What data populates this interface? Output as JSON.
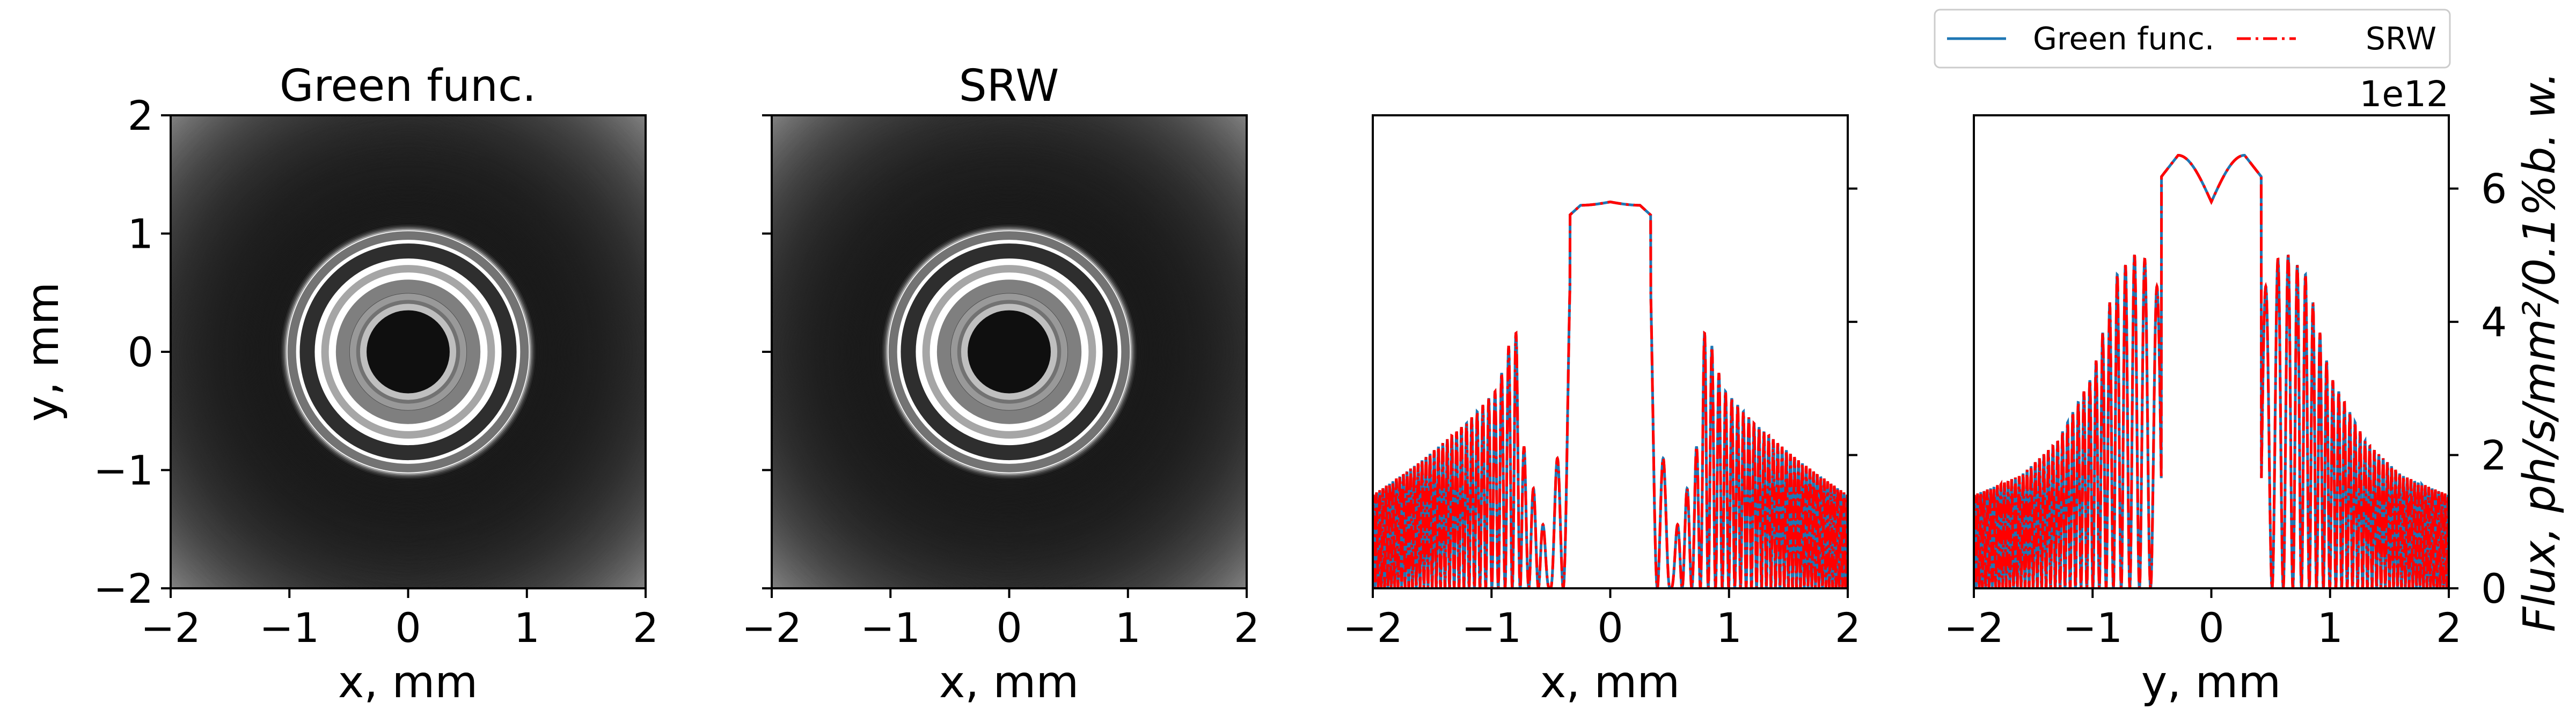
{
  "panels": [
    {
      "title": "Green func.",
      "xlabel": "x, mm",
      "ylabel": "y, mm"
    },
    {
      "title": "SRW",
      "xlabel": "x, mm",
      "ylabel": ""
    },
    {
      "title": "",
      "xlabel": "x, mm",
      "ylabel": ""
    },
    {
      "title": "",
      "xlabel": "y, mm",
      "ylabel": "Flux, ph/s/mm²/0.1%b. w.",
      "offset_text": "1e12"
    }
  ],
  "legend": {
    "entries": [
      "Green func.",
      "SRW"
    ],
    "placement": "top-right"
  },
  "colors": {
    "green_func": "#1f77b4",
    "srw": "#ff0000",
    "frame": "#000000"
  },
  "chart_data": [
    {
      "type": "heatmap",
      "title": "Green func.",
      "xlabel": "x, mm",
      "ylabel": "y, mm",
      "xlim": [
        -2,
        2
      ],
      "ylim": [
        -2,
        2
      ],
      "xticks": [
        "−2",
        "−1",
        "0",
        "1",
        "2"
      ],
      "yticks": [
        "−2",
        "−1",
        "0",
        "1",
        "2"
      ],
      "colormap": "gray_r",
      "description_values": {
        "dark_core_radius_mm": 0.35,
        "strong_ring_radius_mm": 0.85
      }
    },
    {
      "type": "heatmap",
      "title": "SRW",
      "xlabel": "x, mm",
      "ylabel": "",
      "xlim": [
        -2,
        2
      ],
      "ylim": [
        -2,
        2
      ],
      "xticks": [
        "−2",
        "−1",
        "0",
        "1",
        "2"
      ],
      "yticks": [],
      "colormap": "gray_r",
      "description_values": {
        "dark_core_radius_mm": 0.35,
        "strong_ring_radius_mm": 0.85
      }
    },
    {
      "type": "line",
      "xlabel": "x, mm",
      "xlim": [
        -2,
        2
      ],
      "ylim": [
        0,
        7.1
      ],
      "xticks": [
        "−2",
        "−1",
        "0",
        "1",
        "2"
      ],
      "yticks_values": [
        2,
        4,
        6
      ],
      "series": [
        {
          "name": "Green func.",
          "style": "solid"
        },
        {
          "name": "SRW",
          "style": "dashdot"
        }
      ],
      "envelope": {
        "x": [
          -2,
          -1.6,
          -1.2,
          -0.95,
          -0.8,
          -0.7,
          -0.6,
          -0.5,
          -0.4,
          -0.3,
          0,
          0.3,
          0.4,
          0.5,
          0.6,
          0.7,
          0.8,
          0.95,
          1.2,
          1.6,
          2
        ],
        "y": [
          1.4,
          1.9,
          2.5,
          3.0,
          4.0,
          1.5,
          1.5,
          0.0,
          4.0,
          5.7,
          5.75,
          5.7,
          4.0,
          0.0,
          1.5,
          1.5,
          4.0,
          3.0,
          2.5,
          1.9,
          1.4
        ]
      },
      "plateau_peaks": [
        [
          -0.25,
          5.75
        ],
        [
          0.0,
          5.8
        ],
        [
          0.25,
          5.75
        ]
      ]
    },
    {
      "type": "line",
      "xlabel": "y, mm",
      "ylabel": "Flux, ph/s/mm²/0.1%b. w.",
      "xlim": [
        -2,
        2
      ],
      "ylim": [
        0,
        7.1
      ],
      "y_scale_note": "1e12",
      "xticks": [
        "−2",
        "−1",
        "0",
        "1",
        "2"
      ],
      "yticks": [
        "0",
        "2",
        "4",
        "6"
      ],
      "series": [
        {
          "name": "Green func.",
          "style": "solid"
        },
        {
          "name": "SRW",
          "style": "dashdot"
        }
      ],
      "envelope": {
        "x": [
          -2,
          -1.6,
          -1.3,
          -1.0,
          -0.8,
          -0.6,
          -0.45,
          -0.3,
          0,
          0.3,
          0.45,
          0.6,
          0.8,
          1.0,
          1.3,
          1.6,
          2
        ],
        "y": [
          1.4,
          1.7,
          2.2,
          3.2,
          4.7,
          5.1,
          4.5,
          6.5,
          5.8,
          6.5,
          4.5,
          5.1,
          4.7,
          3.2,
          2.2,
          1.7,
          1.4
        ]
      },
      "plateau_peaks": [
        [
          -0.28,
          6.5
        ],
        [
          0.0,
          5.8
        ],
        [
          0.28,
          6.5
        ]
      ]
    }
  ]
}
